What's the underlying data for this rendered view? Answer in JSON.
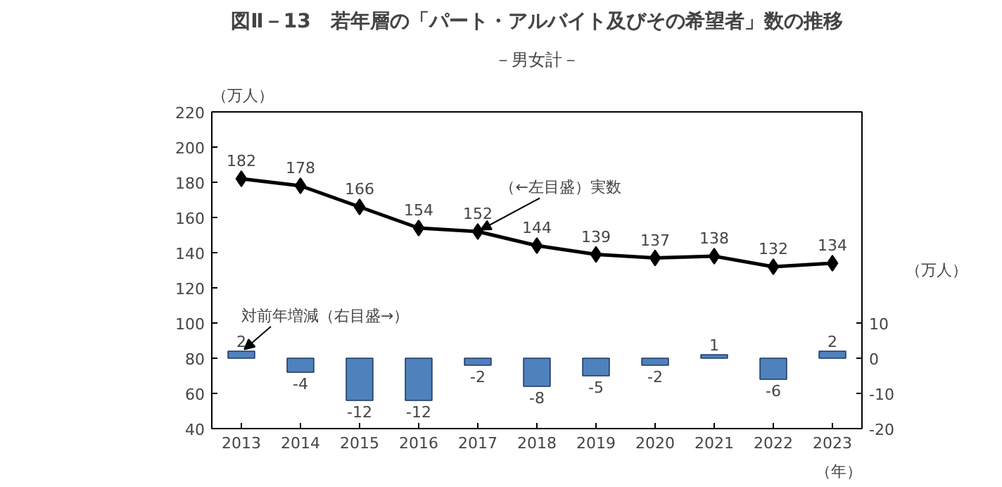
{
  "chart_data": {
    "type": "line",
    "title": "図Ⅱ－13　若年層の「パート・アルバイト及びその希望者」数の推移",
    "subtitle": "－男女計－",
    "ylabel": "（万人）",
    "y2label": "（万人）",
    "xlabel": "（年）",
    "categories": [
      "2013",
      "2014",
      "2015",
      "2016",
      "2017",
      "2018",
      "2019",
      "2020",
      "2021",
      "2022",
      "2023"
    ],
    "series": [
      {
        "color": "#000000",
        "values": [
          182,
          178,
          166,
          154,
          152,
          144,
          139,
          137,
          138,
          132,
          134
        ]
      },
      {
        "type": "bar",
        "axis": "y2",
        "color": "#4f81bd",
        "values": [
          2,
          -4,
          -12,
          -12,
          -2,
          -8,
          -5,
          -2,
          1,
          -6,
          2
        ]
      }
    ],
    "ylim": [
      40,
      220
    ],
    "yticks": [
      40,
      60,
      80,
      100,
      120,
      140,
      160,
      180,
      200,
      220
    ],
    "y2lim": [
      -20,
      70
    ],
    "y2ticks": [
      -20,
      -10,
      0,
      10
    ],
    "annotations": [
      {
        "text": "（←左目盛）実数",
        "x": "2017",
        "y": 152
      },
      {
        "text": "対前年増減（右目盛→）",
        "x": "2013",
        "y": 84
      }
    ],
    "data_labels": true,
    "grid": false,
    "marker": "diamond",
    "line_style": "solid"
  }
}
